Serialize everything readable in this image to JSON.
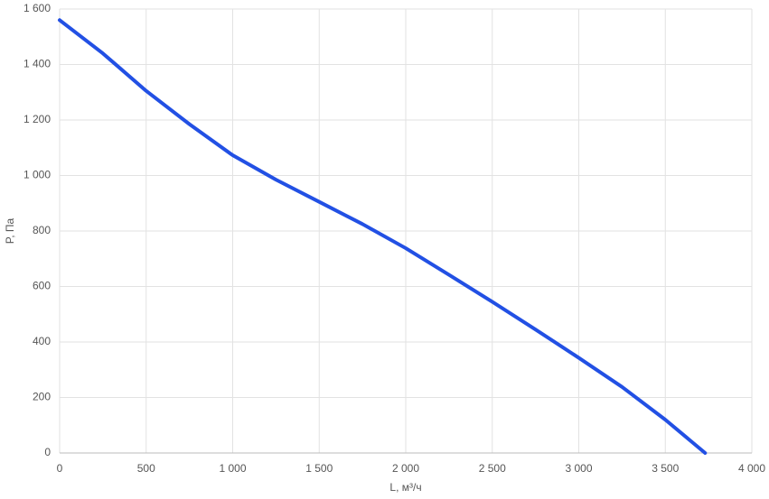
{
  "chart_data": {
    "type": "line",
    "x_label": "L, м³/ч",
    "y_label": "P, Па",
    "x": [
      0,
      250,
      500,
      750,
      1000,
      1250,
      1500,
      1750,
      2000,
      2250,
      2500,
      2750,
      3000,
      3250,
      3500,
      3730
    ],
    "series": [
      {
        "name": "P",
        "color": "#2250e4",
        "values": [
          1560,
          1440,
          1305,
          1185,
          1073,
          985,
          905,
          825,
          738,
          642,
          545,
          445,
          343,
          238,
          120,
          0
        ]
      }
    ],
    "xlim": [
      0,
      4000
    ],
    "xticks": [
      0,
      500,
      {
        "value": 1000,
        "label": "1 000"
      },
      {
        "value": 1500,
        "label": "1 500"
      },
      {
        "value": 2000,
        "label": "2 000"
      },
      {
        "value": 2500,
        "label": "2 500"
      },
      {
        "value": 3000,
        "label": "3 000"
      },
      {
        "value": 3500,
        "label": "3 500"
      },
      {
        "value": 4000,
        "label": "4 000"
      }
    ],
    "ylim": [
      0,
      1600
    ],
    "yticks": [
      0,
      200,
      400,
      600,
      800,
      {
        "value": 1000,
        "label": "1 000"
      },
      {
        "value": 1200,
        "label": "1 200"
      },
      {
        "value": 1400,
        "label": "1 400"
      },
      {
        "value": 1600,
        "label": "1 600"
      }
    ],
    "grid": true
  }
}
